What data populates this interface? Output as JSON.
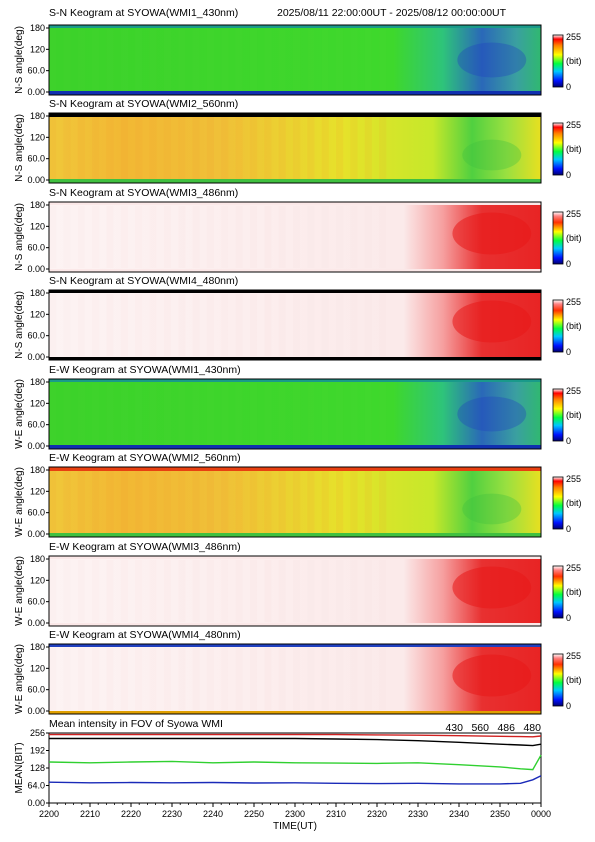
{
  "header": {
    "time_range": "2025/08/11 22:00:00UT - 2025/08/12 00:00:00UT"
  },
  "colorbar": {
    "max_label": "255",
    "unit_label": "(bit)",
    "min_label": "0"
  },
  "keograms": [
    {
      "title": "S-N Keogram at SYOWA(WMI1_430nm)",
      "ylabel": "N-S angle(deg)",
      "y_ticks": [
        "180",
        "120",
        "60.0",
        "0.00"
      ],
      "scheme": "green",
      "colorbar": "rainbow"
    },
    {
      "title": "S-N Keogram at SYOWA(WMI2_560nm)",
      "ylabel": "N-S angle(deg)",
      "y_ticks": [
        "180",
        "120",
        "60.0",
        "0.00"
      ],
      "scheme": "yellow",
      "colorbar": "rainbow"
    },
    {
      "title": "S-N Keogram at SYOWA(WMI3_486nm)",
      "ylabel": "N-S angle(deg)",
      "y_ticks": [
        "180",
        "120",
        "60.0",
        "0.00"
      ],
      "scheme": "red",
      "colorbar": "red"
    },
    {
      "title": "S-N Keogram at SYOWA(WMI4_480nm)",
      "ylabel": "N-S angle(deg)",
      "y_ticks": [
        "180",
        "120",
        "60.0",
        "0.00"
      ],
      "scheme": "red",
      "colorbar": "red"
    },
    {
      "title": "E-W Keogram at SYOWA(WMI1_430nm)",
      "ylabel": "W-E angle(deg)",
      "y_ticks": [
        "180",
        "120",
        "60.0",
        "0.00"
      ],
      "scheme": "green",
      "colorbar": "rainbow"
    },
    {
      "title": "E-W Keogram at SYOWA(WMI2_560nm)",
      "ylabel": "W-E angle(deg)",
      "y_ticks": [
        "180",
        "120",
        "60.0",
        "0.00"
      ],
      "scheme": "yellow",
      "colorbar": "rainbow"
    },
    {
      "title": "E-W Keogram at SYOWA(WMI3_486nm)",
      "ylabel": "W-E angle(deg)",
      "y_ticks": [
        "180",
        "120",
        "60.0",
        "0.00"
      ],
      "scheme": "red",
      "colorbar": "red"
    },
    {
      "title": "E-W Keogram at SYOWA(WMI4_480nm)",
      "ylabel": "W-E angle(deg)",
      "y_ticks": [
        "180",
        "120",
        "60.0",
        "0.00"
      ],
      "scheme": "red",
      "colorbar": "red"
    }
  ],
  "colors": {
    "green": "#40d828",
    "yellow": "#e6e81c",
    "orange": "#f0b428",
    "red": "#e61e1e",
    "pale": "#fdf3f3",
    "blue": "#2a5bb0",
    "line_430": "#1a2ab8",
    "line_560": "#30d030",
    "line_486": "#d02020",
    "line_480": "#000000"
  },
  "chart_data": {
    "type": "line",
    "title": "Mean intensity in FOV of Syowa WMI",
    "xlabel": "TIME(UT)",
    "ylabel": "MEAN(BIT)",
    "x_ticks": [
      "2200",
      "2210",
      "2220",
      "2230",
      "2240",
      "2250",
      "2300",
      "2310",
      "2320",
      "2330",
      "2340",
      "2350",
      "0000"
    ],
    "y_ticks": [
      "256",
      "192",
      "128",
      "64.0",
      "0.00"
    ],
    "xlim": [
      0,
      120
    ],
    "ylim": [
      0,
      256
    ],
    "x": [
      0,
      10,
      20,
      30,
      40,
      50,
      60,
      70,
      80,
      90,
      100,
      110,
      115,
      118,
      120
    ],
    "series": [
      {
        "name": "430",
        "color": "#1a2ab8",
        "values": [
          76,
          74,
          75,
          74,
          75,
          73,
          74,
          72,
          71,
          72,
          70,
          70,
          72,
          85,
          100
        ]
      },
      {
        "name": "560",
        "color": "#30d030",
        "values": [
          150,
          147,
          150,
          152,
          147,
          150,
          147,
          146,
          145,
          147,
          140,
          132,
          125,
          122,
          175
        ]
      },
      {
        "name": "486",
        "color": "#d02020",
        "values": [
          250,
          250,
          250,
          250,
          250,
          250,
          250,
          250,
          249,
          248,
          246,
          244,
          243,
          242,
          245
        ]
      },
      {
        "name": "480",
        "color": "#000000",
        "values": [
          236,
          236,
          236,
          236,
          236,
          236,
          236,
          234,
          232,
          228,
          222,
          215,
          212,
          210,
          215
        ]
      }
    ]
  }
}
